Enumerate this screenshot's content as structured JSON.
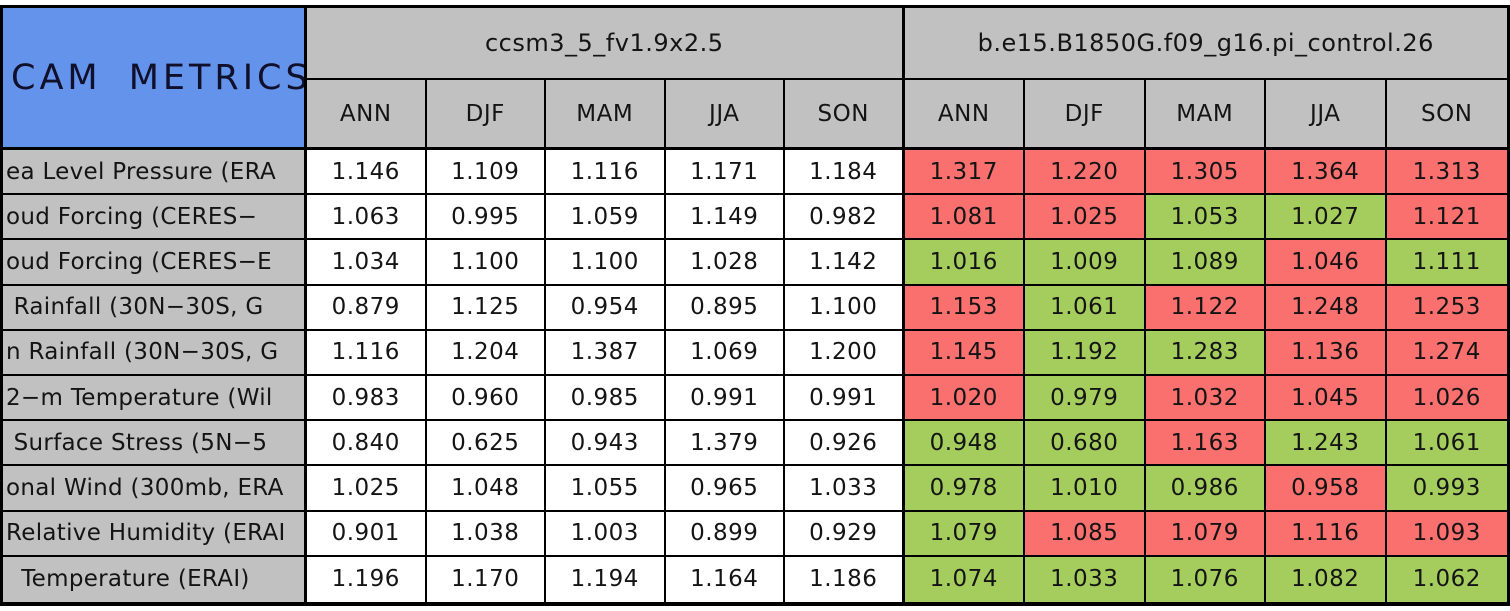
{
  "colors": {
    "corner_blue": "#6493ec",
    "header_gray": "#c1c1c1",
    "label_gray": "#c1c1c1",
    "model1_cell_white": "#ffffff",
    "red": "#f9706f",
    "green": "#a5cd5d",
    "border_black": "#000000"
  },
  "chart_data": {
    "type": "table",
    "title": "CAM METRICS",
    "column_groups": [
      "ccsm3_5_fv1.9x2.5",
      "b.e15.B1850G.f09_g16.pi_control.26"
    ],
    "season_columns": [
      "ANN",
      "DJF",
      "MAM",
      "JJA",
      "SON"
    ],
    "cell_color_legend": "model2 cells shaded red or green; model1 cells white",
    "rows": [
      {
        "label": "ea Level Pressure (ERA",
        "model1_values": [
          "1.146",
          "1.109",
          "1.116",
          "1.171",
          "1.184"
        ],
        "model2_values": [
          "1.317",
          "1.220",
          "1.305",
          "1.364",
          "1.313"
        ],
        "model2_colors": [
          "red",
          "red",
          "red",
          "red",
          "red"
        ]
      },
      {
        "label": "oud Forcing (CERES−",
        "model1_values": [
          "1.063",
          "0.995",
          "1.059",
          "1.149",
          "0.982"
        ],
        "model2_values": [
          "1.081",
          "1.025",
          "1.053",
          "1.027",
          "1.121"
        ],
        "model2_colors": [
          "red",
          "red",
          "green",
          "green",
          "red"
        ]
      },
      {
        "label": "oud Forcing (CERES−E",
        "model1_values": [
          "1.034",
          "1.100",
          "1.100",
          "1.028",
          "1.142"
        ],
        "model2_values": [
          "1.016",
          "1.009",
          "1.089",
          "1.046",
          "1.111"
        ],
        "model2_colors": [
          "green",
          "green",
          "green",
          "red",
          "green"
        ]
      },
      {
        "label": " Rainfall (30N−30S, G",
        "model1_values": [
          "0.879",
          "1.125",
          "0.954",
          "0.895",
          "1.100"
        ],
        "model2_values": [
          "1.153",
          "1.061",
          "1.122",
          "1.248",
          "1.253"
        ],
        "model2_colors": [
          "red",
          "green",
          "red",
          "red",
          "red"
        ]
      },
      {
        "label": "n Rainfall (30N−30S, G",
        "model1_values": [
          "1.116",
          "1.204",
          "1.387",
          "1.069",
          "1.200"
        ],
        "model2_values": [
          "1.145",
          "1.192",
          "1.283",
          "1.136",
          "1.274"
        ],
        "model2_colors": [
          "red",
          "green",
          "green",
          "red",
          "red"
        ]
      },
      {
        "label": "2−m Temperature (Wil",
        "model1_values": [
          "0.983",
          "0.960",
          "0.985",
          "0.991",
          "0.991"
        ],
        "model2_values": [
          "1.020",
          "0.979",
          "1.032",
          "1.045",
          "1.026"
        ],
        "model2_colors": [
          "red",
          "green",
          "red",
          "red",
          "red"
        ]
      },
      {
        "label": " Surface Stress (5N−5",
        "model1_values": [
          "0.840",
          "0.625",
          "0.943",
          "1.379",
          "0.926"
        ],
        "model2_values": [
          "0.948",
          "0.680",
          "1.163",
          "1.243",
          "1.061"
        ],
        "model2_colors": [
          "green",
          "green",
          "red",
          "green",
          "green"
        ]
      },
      {
        "label": "onal Wind (300mb, ERA",
        "model1_values": [
          "1.025",
          "1.048",
          "1.055",
          "0.965",
          "1.033"
        ],
        "model2_values": [
          "0.978",
          "1.010",
          "0.986",
          "0.958",
          "0.993"
        ],
        "model2_colors": [
          "green",
          "green",
          "green",
          "red",
          "green"
        ]
      },
      {
        "label": "Relative Humidity (ERAI",
        "model1_values": [
          "0.901",
          "1.038",
          "1.003",
          "0.899",
          "0.929"
        ],
        "model2_values": [
          "1.079",
          "1.085",
          "1.079",
          "1.116",
          "1.093"
        ],
        "model2_colors": [
          "green",
          "red",
          "red",
          "red",
          "red"
        ]
      },
      {
        "label": "  Temperature (ERAI)",
        "model1_values": [
          "1.196",
          "1.170",
          "1.194",
          "1.164",
          "1.186"
        ],
        "model2_values": [
          "1.074",
          "1.033",
          "1.076",
          "1.082",
          "1.062"
        ],
        "model2_colors": [
          "green",
          "green",
          "green",
          "green",
          "green"
        ]
      }
    ]
  }
}
